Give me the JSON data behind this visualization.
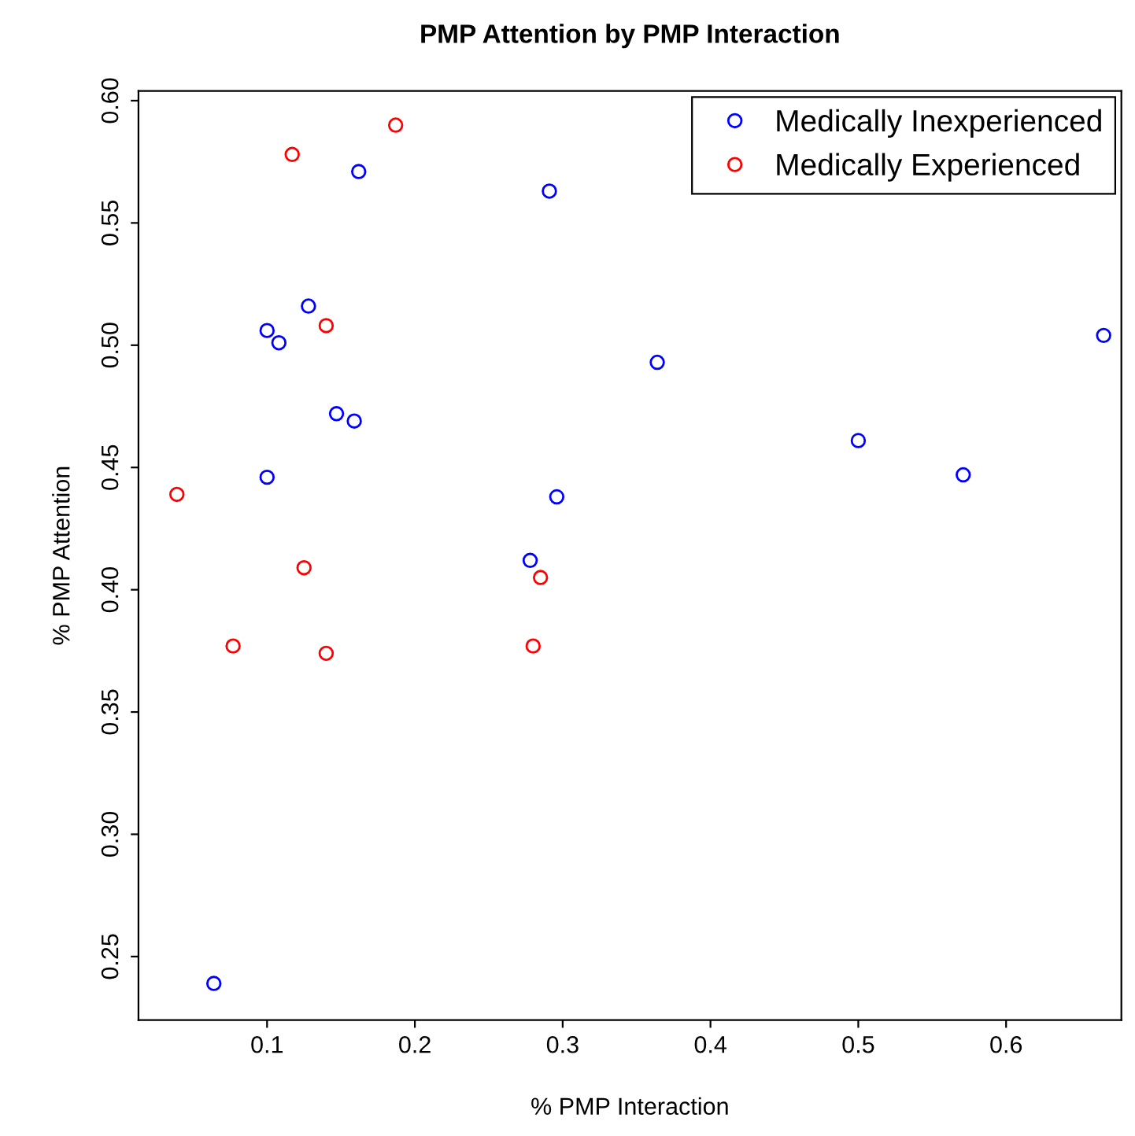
{
  "chart_data": {
    "type": "scatter",
    "title": "PMP Attention by PMP Interaction",
    "xlabel": "% PMP Interaction",
    "ylabel": "% PMP Attention",
    "xlim": [
      0.013,
      0.678
    ],
    "ylim": [
      0.224,
      0.604
    ],
    "xticks": [
      {
        "value": 0.1,
        "label": "0.1"
      },
      {
        "value": 0.2,
        "label": "0.2"
      },
      {
        "value": 0.3,
        "label": "0.3"
      },
      {
        "value": 0.4,
        "label": "0.4"
      },
      {
        "value": 0.5,
        "label": "0.5"
      },
      {
        "value": 0.6,
        "label": "0.6"
      }
    ],
    "yticks": [
      {
        "value": 0.25,
        "label": "0.25"
      },
      {
        "value": 0.3,
        "label": "0.30"
      },
      {
        "value": 0.35,
        "label": "0.35"
      },
      {
        "value": 0.4,
        "label": "0.40"
      },
      {
        "value": 0.45,
        "label": "0.45"
      },
      {
        "value": 0.5,
        "label": "0.50"
      },
      {
        "value": 0.55,
        "label": "0.55"
      },
      {
        "value": 0.6,
        "label": "0.60"
      }
    ],
    "grid": false,
    "legend": "top right",
    "marker": "circle",
    "series": [
      {
        "name": "Medically Inexperienced",
        "color": "#0000ff",
        "x": [
          0.1,
          0.108,
          0.128,
          0.162,
          0.147,
          0.159,
          0.1,
          0.291,
          0.296,
          0.278,
          0.364,
          0.5,
          0.571,
          0.666,
          0.064
        ],
        "values": [
          0.506,
          0.501,
          0.516,
          0.571,
          0.472,
          0.469,
          0.446,
          0.563,
          0.438,
          0.412,
          0.493,
          0.461,
          0.447,
          0.504,
          0.239
        ]
      },
      {
        "name": "Medically Experienced",
        "color": "#ff0000",
        "x": [
          0.187,
          0.117,
          0.14,
          0.039,
          0.125,
          0.077,
          0.14,
          0.285,
          0.28
        ],
        "values": [
          0.59,
          0.578,
          0.508,
          0.439,
          0.409,
          0.377,
          0.374,
          0.405,
          0.377
        ]
      }
    ]
  }
}
